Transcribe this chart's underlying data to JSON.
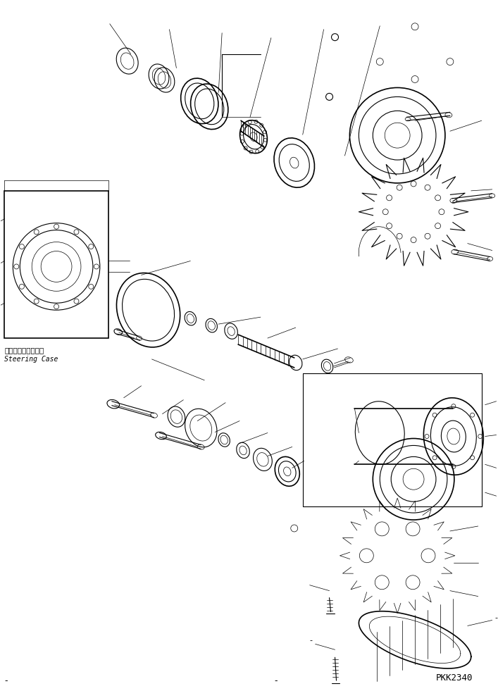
{
  "fig_width": 7.07,
  "fig_height": 9.81,
  "dpi": 100,
  "bg_color": "#ffffff",
  "line_color": "#000000",
  "lw_thin": 0.5,
  "lw_med": 0.8,
  "lw_thick": 1.2,
  "label_jp": "ステアリングケース",
  "label_en": "Steering Case",
  "watermark": "PKK2340"
}
